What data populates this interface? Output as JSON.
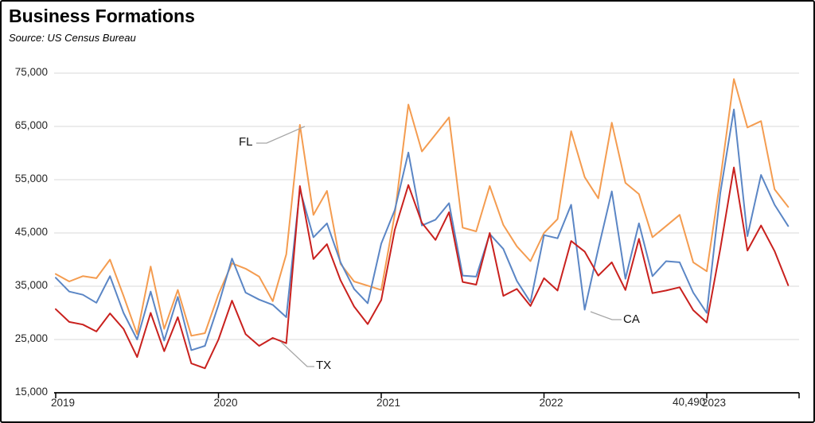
{
  "header": {
    "title": "Business Formations",
    "source": "Source:  US Census Bureau"
  },
  "chart_data": {
    "type": "line",
    "title": "Business Formations",
    "source_note": "Source:  US Census Bureau",
    "x_unit": "month",
    "frequency": "monthly",
    "x_start": "2019-01",
    "x_end": "2023-07",
    "x_tick_labels": [
      "2019",
      "2020",
      "2021",
      "2022",
      "2023"
    ],
    "y_ticks": [
      "15,000",
      "25,000",
      "35,000",
      "45,000",
      "55,000",
      "65,000",
      "75,000"
    ],
    "ylim": [
      15000,
      75000
    ],
    "grid": "horizontal",
    "legend": "inline-labels-with-leader-lines",
    "stray_label": "40,490",
    "colors": {
      "fl": "#F49C50",
      "ca": "#5B86C5",
      "tx": "#C9211E",
      "grid": "#D9D9D9",
      "axis": "#000000",
      "leader": "#A6A6A6"
    },
    "series": [
      {
        "name": "FL",
        "color": "#F49C50",
        "values": [
          37300,
          35900,
          36900,
          36500,
          40000,
          33200,
          26000,
          38700,
          27000,
          34300,
          25700,
          26200,
          33500,
          39300,
          38300,
          36800,
          32200,
          41000,
          65300,
          48400,
          52900,
          39200,
          35900,
          35100,
          34300,
          48500,
          69100,
          60300,
          63500,
          66700,
          46000,
          45300,
          53800,
          46500,
          42500,
          39700,
          45000,
          47600,
          64100,
          55500,
          51500,
          65700,
          54400,
          52300,
          44200,
          46300,
          48400,
          39500,
          37800,
          55000,
          73900,
          64800,
          66000,
          53200,
          49900
        ]
      },
      {
        "name": "CA",
        "color": "#5B86C5",
        "values": [
          36600,
          34000,
          33400,
          31900,
          36900,
          30000,
          25000,
          34000,
          24800,
          33000,
          23000,
          23800,
          31500,
          40200,
          33800,
          32500,
          31500,
          29200,
          53200,
          44200,
          46800,
          39500,
          34500,
          31800,
          43000,
          49300,
          60100,
          46400,
          47500,
          50600,
          37000,
          36800,
          44800,
          42000,
          36000,
          32000,
          44600,
          44000,
          50300,
          30600,
          42000,
          52800,
          36400,
          46800,
          36900,
          39700,
          39500,
          33800,
          30000,
          52500,
          68200,
          44400,
          55900,
          50300,
          46300
        ]
      },
      {
        "name": "TX",
        "color": "#C9211E",
        "values": [
          30700,
          28300,
          27800,
          26500,
          29900,
          27000,
          21700,
          30000,
          22800,
          29200,
          20500,
          19600,
          25000,
          32300,
          26000,
          23800,
          25300,
          24300,
          53800,
          40100,
          42900,
          36100,
          31200,
          27900,
          32400,
          45600,
          54000,
          46900,
          43700,
          48900,
          35800,
          35300,
          45000,
          33200,
          34500,
          31300,
          36500,
          34200,
          43500,
          41500,
          37000,
          39500,
          34300,
          43900,
          33700,
          34200,
          34800,
          30500,
          28200,
          42000,
          57300,
          41700,
          46400,
          41600,
          35200
        ]
      }
    ]
  }
}
